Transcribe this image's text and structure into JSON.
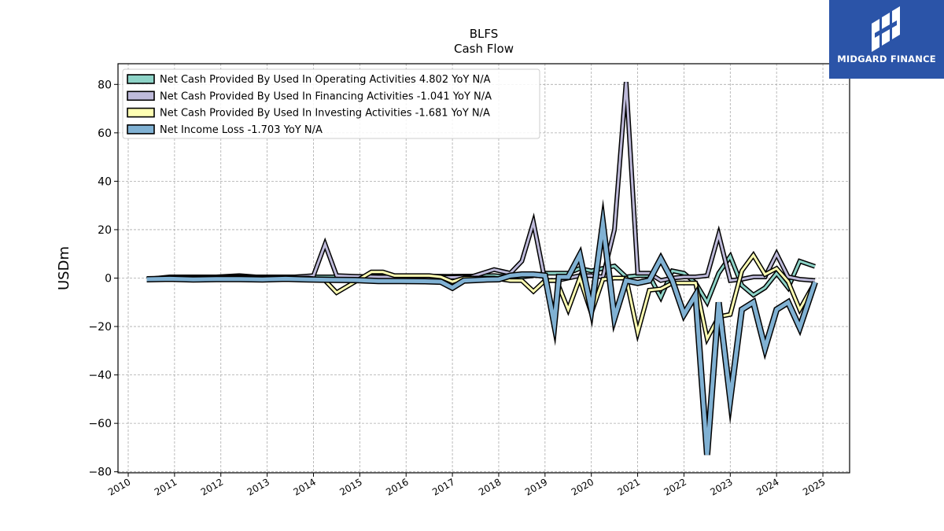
{
  "brand": {
    "name": "MIDGARD FINANCE",
    "logo_color": "#2b54a8",
    "icon": "midgard-m-monogram-icon"
  },
  "chart_data": {
    "type": "line",
    "title": "BLFS",
    "subtitle": "Cash Flow",
    "ylabel": "USDm",
    "xlabel": "",
    "xlim": [
      2010,
      2025
    ],
    "ylim": [
      -80,
      88
    ],
    "x_ticks": [
      "2010",
      "2011",
      "2012",
      "2013",
      "2014",
      "2015",
      "2016",
      "2017",
      "2018",
      "2019",
      "2020",
      "2021",
      "2022",
      "2023",
      "2024",
      "2025"
    ],
    "y_ticks": [
      "80",
      "60",
      "40",
      "20",
      "0",
      "−20",
      "−40",
      "−60",
      "−80"
    ],
    "grid": true,
    "legend_position": "top-left",
    "series": [
      {
        "name": "Net Cash Provided By Used In Operating Activities  4.802 YoY N/A",
        "color": "#8dd3c7",
        "width": 3,
        "points": [
          [
            2010.4,
            -0.5
          ],
          [
            2010.9,
            0.2
          ],
          [
            2011.9,
            0.5
          ],
          [
            2012.4,
            1.0
          ],
          [
            2012.9,
            0.3
          ],
          [
            2013.9,
            0.5
          ],
          [
            2014.4,
            0.5
          ],
          [
            2014.9,
            0.5
          ],
          [
            2015.4,
            0.7
          ],
          [
            2015.9,
            0.8
          ],
          [
            2016.4,
            0.8
          ],
          [
            2016.9,
            0.7
          ],
          [
            2017.4,
            0.8
          ],
          [
            2017.9,
            1.0
          ],
          [
            2018.2,
            0.5
          ],
          [
            2018.5,
            0.5
          ],
          [
            2018.75,
            1.0
          ],
          [
            2019.0,
            2.0
          ],
          [
            2019.25,
            2.0
          ],
          [
            2019.5,
            2.0
          ],
          [
            2019.75,
            4.0
          ],
          [
            2020.0,
            3.0
          ],
          [
            2020.25,
            4.0
          ],
          [
            2020.5,
            5.0
          ],
          [
            2020.75,
            0.5
          ],
          [
            2021.0,
            1.0
          ],
          [
            2021.25,
            1.0
          ],
          [
            2021.5,
            -8.0
          ],
          [
            2021.75,
            3.0
          ],
          [
            2022.0,
            2.0
          ],
          [
            2022.25,
            -2.0
          ],
          [
            2022.5,
            -10.0
          ],
          [
            2022.75,
            2.0
          ],
          [
            2023.0,
            9.0
          ],
          [
            2023.25,
            -3.0
          ],
          [
            2023.5,
            -7.0
          ],
          [
            2023.75,
            -4.0
          ],
          [
            2024.0,
            2.0
          ],
          [
            2024.25,
            -4.0
          ],
          [
            2024.5,
            7.0
          ],
          [
            2024.83,
            4.8
          ]
        ]
      },
      {
        "name": "Net Cash Provided By Used In Financing Activities  -1.041 YoY N/A",
        "color": "#bebada",
        "width": 3,
        "points": [
          [
            2010.4,
            -0.5
          ],
          [
            2010.9,
            0.5
          ],
          [
            2011.9,
            0.5
          ],
          [
            2012.9,
            0.5
          ],
          [
            2013.6,
            0.5
          ],
          [
            2014.0,
            1.0
          ],
          [
            2014.25,
            14.0
          ],
          [
            2014.5,
            1.0
          ],
          [
            2014.9,
            0.7
          ],
          [
            2015.4,
            0.5
          ],
          [
            2015.9,
            0.5
          ],
          [
            2016.4,
            0.3
          ],
          [
            2016.9,
            0.3
          ],
          [
            2017.4,
            0.5
          ],
          [
            2017.9,
            3.5
          ],
          [
            2018.25,
            2.0
          ],
          [
            2018.5,
            7.0
          ],
          [
            2018.75,
            23.0
          ],
          [
            2019.0,
            -1.0
          ],
          [
            2019.25,
            -1.0
          ],
          [
            2019.5,
            0.0
          ],
          [
            2019.75,
            1.0
          ],
          [
            2020.0,
            1.0
          ],
          [
            2020.25,
            0.5
          ],
          [
            2020.5,
            20.0
          ],
          [
            2020.75,
            81.0
          ],
          [
            2021.0,
            2.0
          ],
          [
            2021.25,
            2.0
          ],
          [
            2021.5,
            -1.0
          ],
          [
            2021.75,
            0.0
          ],
          [
            2022.0,
            0.5
          ],
          [
            2022.25,
            0.5
          ],
          [
            2022.5,
            1.0
          ],
          [
            2022.75,
            18.0
          ],
          [
            2023.0,
            -1.0
          ],
          [
            2023.25,
            -0.5
          ],
          [
            2023.5,
            0.5
          ],
          [
            2023.75,
            0.5
          ],
          [
            2024.0,
            10.0
          ],
          [
            2024.25,
            0.5
          ],
          [
            2024.5,
            -0.5
          ],
          [
            2024.83,
            -1.0
          ]
        ]
      },
      {
        "name": "Net Cash Provided By Used In Investing Activities  -1.681 YoY N/A",
        "color": "#ffffb3",
        "width": 3,
        "points": [
          [
            2010.4,
            -0.5
          ],
          [
            2010.9,
            0.0
          ],
          [
            2011.9,
            0.0
          ],
          [
            2012.9,
            0.0
          ],
          [
            2013.9,
            0.0
          ],
          [
            2014.25,
            -1.0
          ],
          [
            2014.5,
            -6.0
          ],
          [
            2014.9,
            -1.5
          ],
          [
            2015.25,
            2.5
          ],
          [
            2015.5,
            2.5
          ],
          [
            2015.75,
            1.0
          ],
          [
            2016.0,
            1.0
          ],
          [
            2016.5,
            1.0
          ],
          [
            2016.75,
            0.5
          ],
          [
            2017.0,
            -1.5
          ],
          [
            2017.25,
            0.0
          ],
          [
            2017.5,
            0.0
          ],
          [
            2017.9,
            0.0
          ],
          [
            2018.25,
            -1.0
          ],
          [
            2018.5,
            -1.0
          ],
          [
            2018.75,
            -5.5
          ],
          [
            2019.0,
            -1.0
          ],
          [
            2019.25,
            -1.0
          ],
          [
            2019.5,
            -13.0
          ],
          [
            2019.75,
            0.0
          ],
          [
            2020.0,
            -14.5
          ],
          [
            2020.25,
            -0.5
          ],
          [
            2020.5,
            0.0
          ],
          [
            2020.75,
            0.0
          ],
          [
            2021.0,
            -22.5
          ],
          [
            2021.25,
            -5.0
          ],
          [
            2021.5,
            -4.5
          ],
          [
            2021.75,
            -2.0
          ],
          [
            2022.0,
            -2.0
          ],
          [
            2022.25,
            -2.0
          ],
          [
            2022.5,
            -25.0
          ],
          [
            2022.75,
            -16.0
          ],
          [
            2023.0,
            -15.0
          ],
          [
            2023.25,
            3.0
          ],
          [
            2023.5,
            9.5
          ],
          [
            2023.75,
            1.5
          ],
          [
            2024.0,
            4.0
          ],
          [
            2024.25,
            -1.5
          ],
          [
            2024.5,
            -13.0
          ],
          [
            2024.83,
            -1.7
          ]
        ]
      },
      {
        "name": "Net Income Loss  -1.703 YoY N/A",
        "color": "#80b1d3",
        "width": 5,
        "points": [
          [
            2010.4,
            -0.5
          ],
          [
            2010.9,
            -0.3
          ],
          [
            2011.4,
            -0.6
          ],
          [
            2011.9,
            -0.4
          ],
          [
            2012.4,
            -0.4
          ],
          [
            2012.9,
            -0.6
          ],
          [
            2013.4,
            -0.3
          ],
          [
            2013.9,
            -0.6
          ],
          [
            2014.4,
            -0.7
          ],
          [
            2014.9,
            -0.8
          ],
          [
            2015.4,
            -1.2
          ],
          [
            2015.9,
            -1.2
          ],
          [
            2016.4,
            -1.3
          ],
          [
            2016.75,
            -1.5
          ],
          [
            2017.0,
            -4.0
          ],
          [
            2017.25,
            -1.0
          ],
          [
            2017.5,
            -0.8
          ],
          [
            2017.75,
            -0.6
          ],
          [
            2018.0,
            -0.5
          ],
          [
            2018.25,
            1.0
          ],
          [
            2018.5,
            1.5
          ],
          [
            2018.75,
            1.5
          ],
          [
            2019.0,
            1.0
          ],
          [
            2019.2,
            -19.0
          ],
          [
            2019.3,
            0.5
          ],
          [
            2019.5,
            0.5
          ],
          [
            2019.75,
            9.5
          ],
          [
            2020.0,
            -13.0
          ],
          [
            2020.25,
            22.5
          ],
          [
            2020.5,
            -16.5
          ],
          [
            2020.75,
            -1.0
          ],
          [
            2021.0,
            -2.0
          ],
          [
            2021.25,
            -1.0
          ],
          [
            2021.5,
            8.0
          ],
          [
            2021.75,
            -1.0
          ],
          [
            2022.0,
            -15.0
          ],
          [
            2022.25,
            -7.0
          ],
          [
            2022.5,
            -73.0
          ],
          [
            2022.75,
            -10.0
          ],
          [
            2023.0,
            -50.0
          ],
          [
            2023.25,
            -13.0
          ],
          [
            2023.5,
            -10.0
          ],
          [
            2023.75,
            -29.0
          ],
          [
            2024.0,
            -13.0
          ],
          [
            2024.25,
            -10.0
          ],
          [
            2024.5,
            -20.5
          ],
          [
            2024.83,
            -1.7
          ]
        ]
      }
    ]
  }
}
